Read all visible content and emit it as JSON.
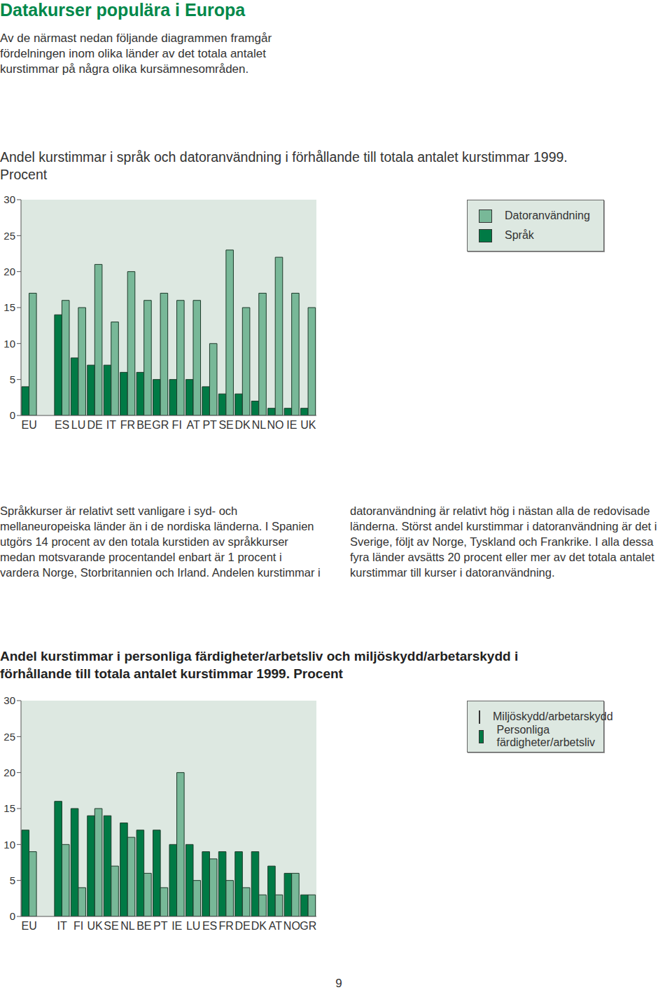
{
  "title": "Datakurser populära i Europa",
  "intro": "Av de närmast nedan följande diagrammen framgår fördelningen inom olika länder av det totala antalet kurstimmar på några olika kursämnesområden.",
  "chart_data": [
    {
      "type": "bar",
      "title": "Andel kurstimmar i språk och datoranvändning i förhållande till totala antalet kurstimmar 1999. Procent",
      "categories": [
        "EU",
        null,
        "ES",
        "LU",
        "DE",
        "IT",
        "FR",
        "BE",
        "GR",
        "FI",
        "AT",
        "PT",
        "SE",
        "DK",
        "NL",
        "NO",
        "IE",
        "UK"
      ],
      "series": [
        {
          "name": "Språk",
          "color": "#007a45",
          "values": [
            4,
            null,
            14,
            8,
            7,
            7,
            6,
            6,
            5,
            5,
            5,
            4,
            3,
            3,
            2,
            1,
            1,
            1
          ]
        },
        {
          "name": "Datoranvändning",
          "color": "#78b898",
          "values": [
            17,
            null,
            16,
            15,
            21,
            13,
            20,
            16,
            17,
            16,
            16,
            10,
            23,
            15,
            17,
            22,
            17,
            15
          ]
        }
      ],
      "ylim": [
        0,
        30
      ],
      "yticks": [
        0,
        5,
        10,
        15,
        20,
        25,
        30
      ],
      "grid": false,
      "legend": "right"
    },
    {
      "type": "bar",
      "title": "Andel kurstimmar i personliga färdigheter/arbetsliv och miljöskydd/arbetarskydd i förhållande till totala antalet kurstimmar 1999. Procent",
      "categories": [
        "EU",
        null,
        "IT",
        "FI",
        "UK",
        "SE",
        "NL",
        "BE",
        "PT",
        "IE",
        "LU",
        "ES",
        "FR",
        "DE",
        "DK",
        "AT",
        "NO",
        "GR"
      ],
      "series": [
        {
          "name": "Personliga färdigheter/arbetsliv",
          "color": "#007a45",
          "values": [
            12,
            null,
            16,
            15,
            14,
            14,
            13,
            12,
            12,
            10,
            10,
            9,
            9,
            9,
            9,
            7,
            6,
            3
          ]
        },
        {
          "name": "Miljöskydd/arbetarskydd",
          "color": "#78b898",
          "values": [
            9,
            null,
            10,
            4,
            15,
            7,
            11,
            6,
            4,
            20,
            5,
            8,
            5,
            4,
            3,
            3,
            6,
            3
          ]
        }
      ],
      "ylim": [
        0,
        30
      ],
      "yticks": [
        0,
        5,
        10,
        15,
        20,
        25,
        30
      ],
      "grid": false,
      "legend": "right"
    }
  ],
  "body": "Språkkurser är relativt sett vanligare i syd- och mellaneuropeiska länder än i de nordiska länderna. I Spanien utgörs 14 procent av den totala kurstiden av språkkurser medan motsvarande procentandel enbart är 1 procent i vardera Norge, Storbritannien och Irland. Andelen kurstimmar i datoranvändning är relativt hög i nästan alla de redovisade länderna. Störst andel kurstimmar i datoranvändning är det i Sverige, följt av Norge, Tyskland och Frankrike. I alla dessa fyra länder avsätts 20 procent eller mer av det totala antalet kurstimmar till kurser i datoranvändning.",
  "page_number": 9
}
